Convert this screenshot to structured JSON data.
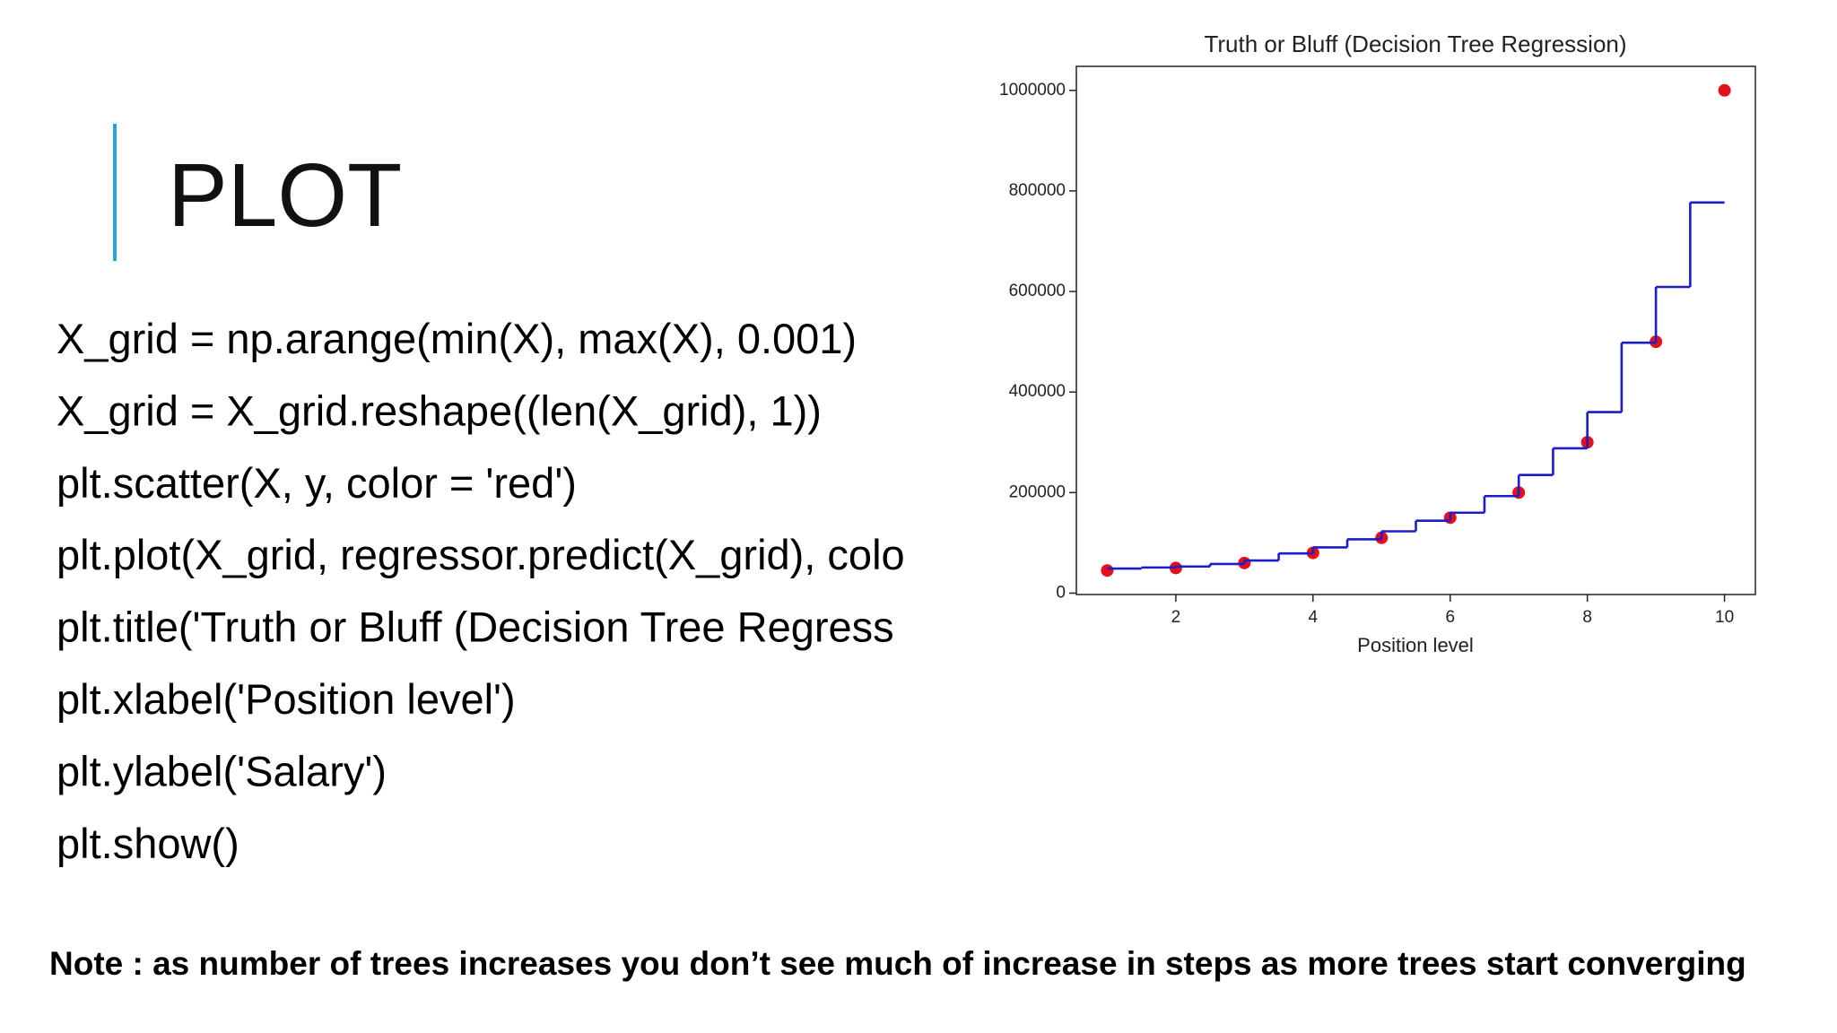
{
  "slide": {
    "title": "PLOT",
    "code": [
      "X_grid = np.arange(min(X), max(X), 0.001)",
      "X_grid = X_grid.reshape((len(X_grid), 1))",
      "plt.scatter(X, y, color = 'red')",
      "plt.plot(X_grid, regressor.predict(X_grid), colo",
      "plt.title('Truth or Bluff (Decision Tree Regress",
      "plt.xlabel('Position level')",
      "plt.ylabel('Salary')",
      "plt.show()"
    ],
    "note": "Note : as number of trees increases you don’t see much of increase in steps as more trees start converging"
  },
  "chart_data": {
    "type": "scatter",
    "title": "Truth or Bluff (Decision Tree Regression)",
    "xlabel": "Position level",
    "series": [
      {
        "type": "scatter",
        "color": "#e3101c",
        "x": [
          1,
          2,
          3,
          4,
          5,
          6,
          7,
          8,
          9,
          10
        ],
        "values": [
          45000,
          50000,
          60000,
          80000,
          110000,
          150000,
          200000,
          300000,
          500000,
          1000000
        ]
      },
      {
        "type": "step",
        "color": "#1c1cc8",
        "bins": [
          1,
          1.5,
          2,
          2.5,
          3,
          3.5,
          4,
          4.5,
          5,
          5.5,
          6,
          6.5,
          7,
          7.5,
          8,
          8.5,
          9,
          9.5,
          10
        ],
        "values": [
          48800,
          51000,
          53000,
          58000,
          65000,
          79000,
          91000,
          107000,
          123000,
          144000,
          160000,
          193000,
          235000,
          288000,
          360000,
          498000,
          609000,
          777000
        ]
      }
    ],
    "xlim": [
      0.55,
      10.45
    ],
    "ylim": [
      -2750,
      1047750
    ],
    "xticks": [
      2,
      4,
      6,
      8,
      10
    ],
    "yticks": [
      0,
      200000,
      400000,
      600000,
      800000,
      1000000
    ],
    "grid": false
  }
}
